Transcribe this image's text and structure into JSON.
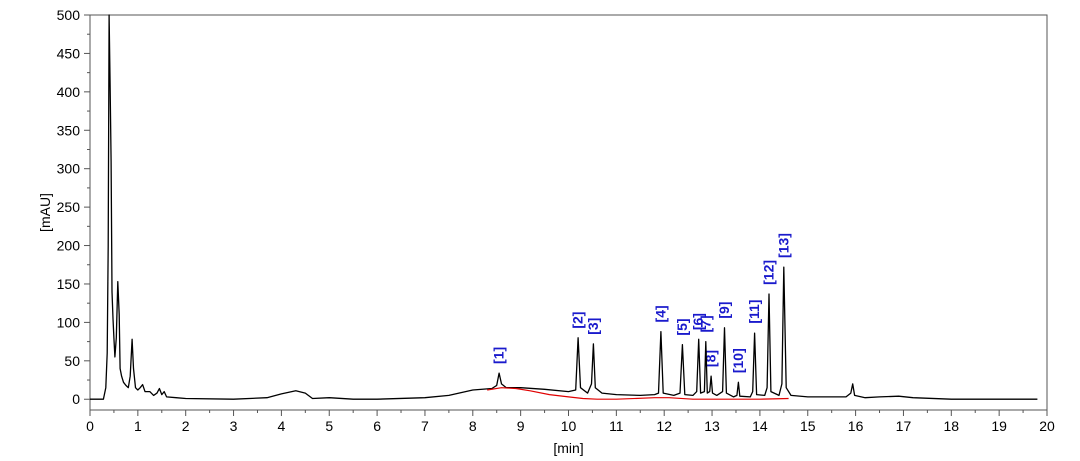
{
  "chart_data": {
    "type": "line",
    "xlabel": "[min]",
    "ylabel": "[mAU]",
    "xlim": [
      0,
      20
    ],
    "ylim": [
      -14,
      500
    ],
    "x_ticks": [
      "0",
      "1",
      "2",
      "3",
      "4",
      "5",
      "6",
      "7",
      "8",
      "9",
      "10",
      "11",
      "12",
      "13",
      "14",
      "15",
      "16",
      "17",
      "18",
      "19",
      "20"
    ],
    "y_ticks": [
      "0",
      "50",
      "100",
      "150",
      "200",
      "250",
      "300",
      "350",
      "400",
      "450",
      "500"
    ],
    "grid": false,
    "legend": "none",
    "colors": {
      "trace": "#000000",
      "baseline": "#e00000",
      "peak_label": "#1a1acc",
      "frame": "#555555"
    },
    "trace": [
      [
        0.0,
        0
      ],
      [
        0.28,
        0
      ],
      [
        0.33,
        15
      ],
      [
        0.36,
        60
      ],
      [
        0.38,
        200
      ],
      [
        0.4,
        500
      ],
      [
        0.42,
        410
      ],
      [
        0.44,
        310
      ],
      [
        0.46,
        140
      ],
      [
        0.48,
        105
      ],
      [
        0.5,
        80
      ],
      [
        0.52,
        55
      ],
      [
        0.55,
        80
      ],
      [
        0.58,
        153
      ],
      [
        0.61,
        110
      ],
      [
        0.63,
        40
      ],
      [
        0.66,
        30
      ],
      [
        0.7,
        22
      ],
      [
        0.75,
        18
      ],
      [
        0.8,
        15
      ],
      [
        0.84,
        30
      ],
      [
        0.88,
        78
      ],
      [
        0.91,
        40
      ],
      [
        0.95,
        15
      ],
      [
        1.0,
        12
      ],
      [
        1.05,
        15
      ],
      [
        1.1,
        19
      ],
      [
        1.15,
        10
      ],
      [
        1.25,
        10
      ],
      [
        1.33,
        5
      ],
      [
        1.4,
        8
      ],
      [
        1.45,
        14
      ],
      [
        1.5,
        6
      ],
      [
        1.55,
        10
      ],
      [
        1.6,
        3
      ],
      [
        1.8,
        2
      ],
      [
        2.0,
        1
      ],
      [
        3.0,
        0
      ],
      [
        3.7,
        2
      ],
      [
        4.0,
        7
      ],
      [
        4.3,
        11
      ],
      [
        4.5,
        8
      ],
      [
        4.65,
        1
      ],
      [
        5.0,
        2
      ],
      [
        5.5,
        0
      ],
      [
        6.0,
        0
      ],
      [
        7.0,
        2
      ],
      [
        7.5,
        5
      ],
      [
        8.0,
        12
      ],
      [
        8.4,
        14
      ],
      [
        8.5,
        18
      ],
      [
        8.55,
        34
      ],
      [
        8.6,
        20
      ],
      [
        8.7,
        15
      ],
      [
        9.0,
        15
      ],
      [
        9.5,
        13
      ],
      [
        10.0,
        10
      ],
      [
        10.15,
        12
      ],
      [
        10.2,
        80
      ],
      [
        10.25,
        15
      ],
      [
        10.4,
        8
      ],
      [
        10.48,
        20
      ],
      [
        10.52,
        72
      ],
      [
        10.56,
        15
      ],
      [
        10.7,
        8
      ],
      [
        11.0,
        6
      ],
      [
        11.5,
        5
      ],
      [
        11.8,
        6
      ],
      [
        11.88,
        8
      ],
      [
        11.93,
        88
      ],
      [
        11.98,
        8
      ],
      [
        12.2,
        5
      ],
      [
        12.33,
        8
      ],
      [
        12.38,
        71
      ],
      [
        12.43,
        6
      ],
      [
        12.6,
        5
      ],
      [
        12.68,
        10
      ],
      [
        12.72,
        78
      ],
      [
        12.76,
        8
      ],
      [
        12.84,
        10
      ],
      [
        12.87,
        75
      ],
      [
        12.9,
        8
      ],
      [
        12.95,
        10
      ],
      [
        12.98,
        30
      ],
      [
        13.01,
        8
      ],
      [
        13.1,
        5
      ],
      [
        13.22,
        10
      ],
      [
        13.26,
        93
      ],
      [
        13.3,
        8
      ],
      [
        13.45,
        3
      ],
      [
        13.52,
        5
      ],
      [
        13.55,
        22
      ],
      [
        13.58,
        4
      ],
      [
        13.8,
        3
      ],
      [
        13.85,
        10
      ],
      [
        13.89,
        86
      ],
      [
        13.93,
        6
      ],
      [
        14.1,
        5
      ],
      [
        14.15,
        15
      ],
      [
        14.19,
        137
      ],
      [
        14.23,
        10
      ],
      [
        14.4,
        5
      ],
      [
        14.46,
        20
      ],
      [
        14.5,
        172
      ],
      [
        14.55,
        15
      ],
      [
        14.65,
        5
      ],
      [
        15.0,
        3
      ],
      [
        15.5,
        3
      ],
      [
        15.8,
        3
      ],
      [
        15.9,
        8
      ],
      [
        15.94,
        20
      ],
      [
        15.98,
        5
      ],
      [
        16.2,
        2
      ],
      [
        16.5,
        3
      ],
      [
        16.9,
        4
      ],
      [
        17.2,
        2
      ],
      [
        18.0,
        0
      ],
      [
        19.0,
        0
      ],
      [
        19.8,
        0
      ]
    ],
    "baseline": [
      [
        8.3,
        12
      ],
      [
        8.6,
        15
      ],
      [
        8.9,
        14
      ],
      [
        9.2,
        11
      ],
      [
        9.6,
        6
      ],
      [
        10.0,
        3
      ],
      [
        10.3,
        1
      ],
      [
        10.6,
        0
      ],
      [
        11.0,
        0
      ],
      [
        11.8,
        2
      ],
      [
        12.1,
        2
      ],
      [
        12.6,
        0
      ],
      [
        13.0,
        0
      ],
      [
        13.5,
        0
      ],
      [
        14.0,
        0
      ],
      [
        14.6,
        1
      ]
    ],
    "peaks": [
      {
        "label": "[1]",
        "x": 8.55,
        "y": 34
      },
      {
        "label": "[2]",
        "x": 10.2,
        "y": 80
      },
      {
        "label": "[3]",
        "x": 10.52,
        "y": 72
      },
      {
        "label": "[4]",
        "x": 11.93,
        "y": 88
      },
      {
        "label": "[5]",
        "x": 12.38,
        "y": 71
      },
      {
        "label": "[6]",
        "x": 12.72,
        "y": 78
      },
      {
        "label": "[7]",
        "x": 12.87,
        "y": 75
      },
      {
        "label": "[8]",
        "x": 12.98,
        "y": 30
      },
      {
        "label": "[9]",
        "x": 13.26,
        "y": 93
      },
      {
        "label": "[10]",
        "x": 13.55,
        "y": 22
      },
      {
        "label": "[11]",
        "x": 13.89,
        "y": 86
      },
      {
        "label": "[12]",
        "x": 14.19,
        "y": 137
      },
      {
        "label": "[13]",
        "x": 14.5,
        "y": 172
      }
    ]
  }
}
